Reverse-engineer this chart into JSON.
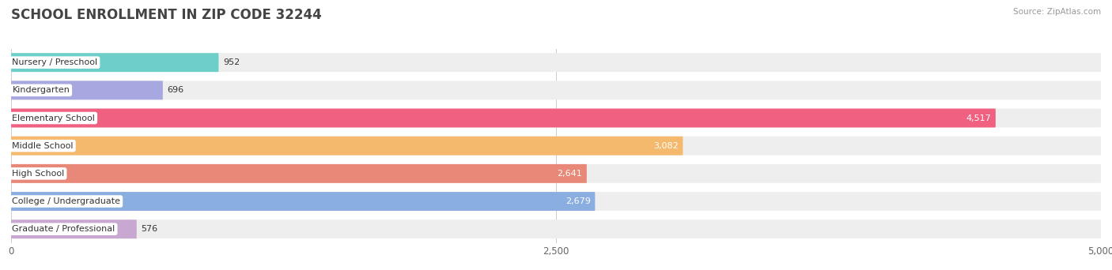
{
  "title": "SCHOOL ENROLLMENT IN ZIP CODE 32244",
  "source": "Source: ZipAtlas.com",
  "categories": [
    "Nursery / Preschool",
    "Kindergarten",
    "Elementary School",
    "Middle School",
    "High School",
    "College / Undergraduate",
    "Graduate / Professional"
  ],
  "values": [
    952,
    696,
    4517,
    3082,
    2641,
    2679,
    576
  ],
  "bar_colors": [
    "#6ecfca",
    "#a8a8e0",
    "#f06080",
    "#f5b96e",
    "#e88878",
    "#8aaee0",
    "#c8a8d0"
  ],
  "bar_bg_color": "#eeeeee",
  "xlim": [
    0,
    5000
  ],
  "xticks": [
    0,
    2500,
    5000
  ],
  "xtick_labels": [
    "0",
    "2,500",
    "5,000"
  ],
  "title_fontsize": 12,
  "label_fontsize": 8.0,
  "value_fontsize": 8.0,
  "background_color": "#ffffff",
  "bar_height": 0.68,
  "bar_gap": 0.32,
  "label_color_dark": "#333333",
  "label_color_light": "#ffffff"
}
